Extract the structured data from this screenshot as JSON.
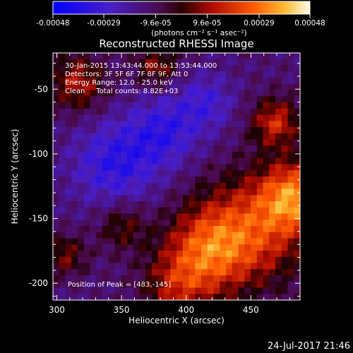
{
  "colorbar": {
    "tick_labels": [
      "-0.00048",
      "-0.00029",
      "-9.6e-05",
      "9.6e-05",
      "0.00029",
      "0.00048"
    ],
    "tick_values": [
      -0.00048,
      -0.00029,
      -9.6e-05,
      9.6e-05,
      0.00029,
      0.00048
    ],
    "range": [
      -0.00048,
      0.00048
    ],
    "unit_label": "(photons cm⁻² s⁻¹ asec⁻²)"
  },
  "chart_data": {
    "type": "heatmap",
    "title": "Reconstructed RHESSI Image",
    "xlabel": "Heliocentric X (arcsec)",
    "ylabel": "Heliocentric Y (arcsec)",
    "xlim": [
      297,
      488
    ],
    "ylim": [
      -213,
      -22
    ],
    "x_ticks": [
      300,
      350,
      400,
      450
    ],
    "y_ticks": [
      -50,
      -100,
      -150,
      -200
    ],
    "peak": [
      483,
      -145
    ],
    "annotations": [
      "30-Jan-2015 13:43:44.000 to 13:53:44.000",
      "Detectors: 3F 5F 6F 7F 8F 9F, Att 0",
      "Energy Range: 12.0 - 25.0 keV",
      "Clean     Total counts: 8.82E+03",
      "Position of Peak = [483,-145]"
    ],
    "colors": {
      "background": "#000000",
      "colormap": [
        "#0000ff",
        "#3a18d6",
        "#55108c",
        "#4a0a5a",
        "#7a0000",
        "#c21400",
        "#ff5a00",
        "#ffb428",
        "#ffffe0"
      ]
    }
  },
  "timestamp": "24-Jul-2017 21:46"
}
